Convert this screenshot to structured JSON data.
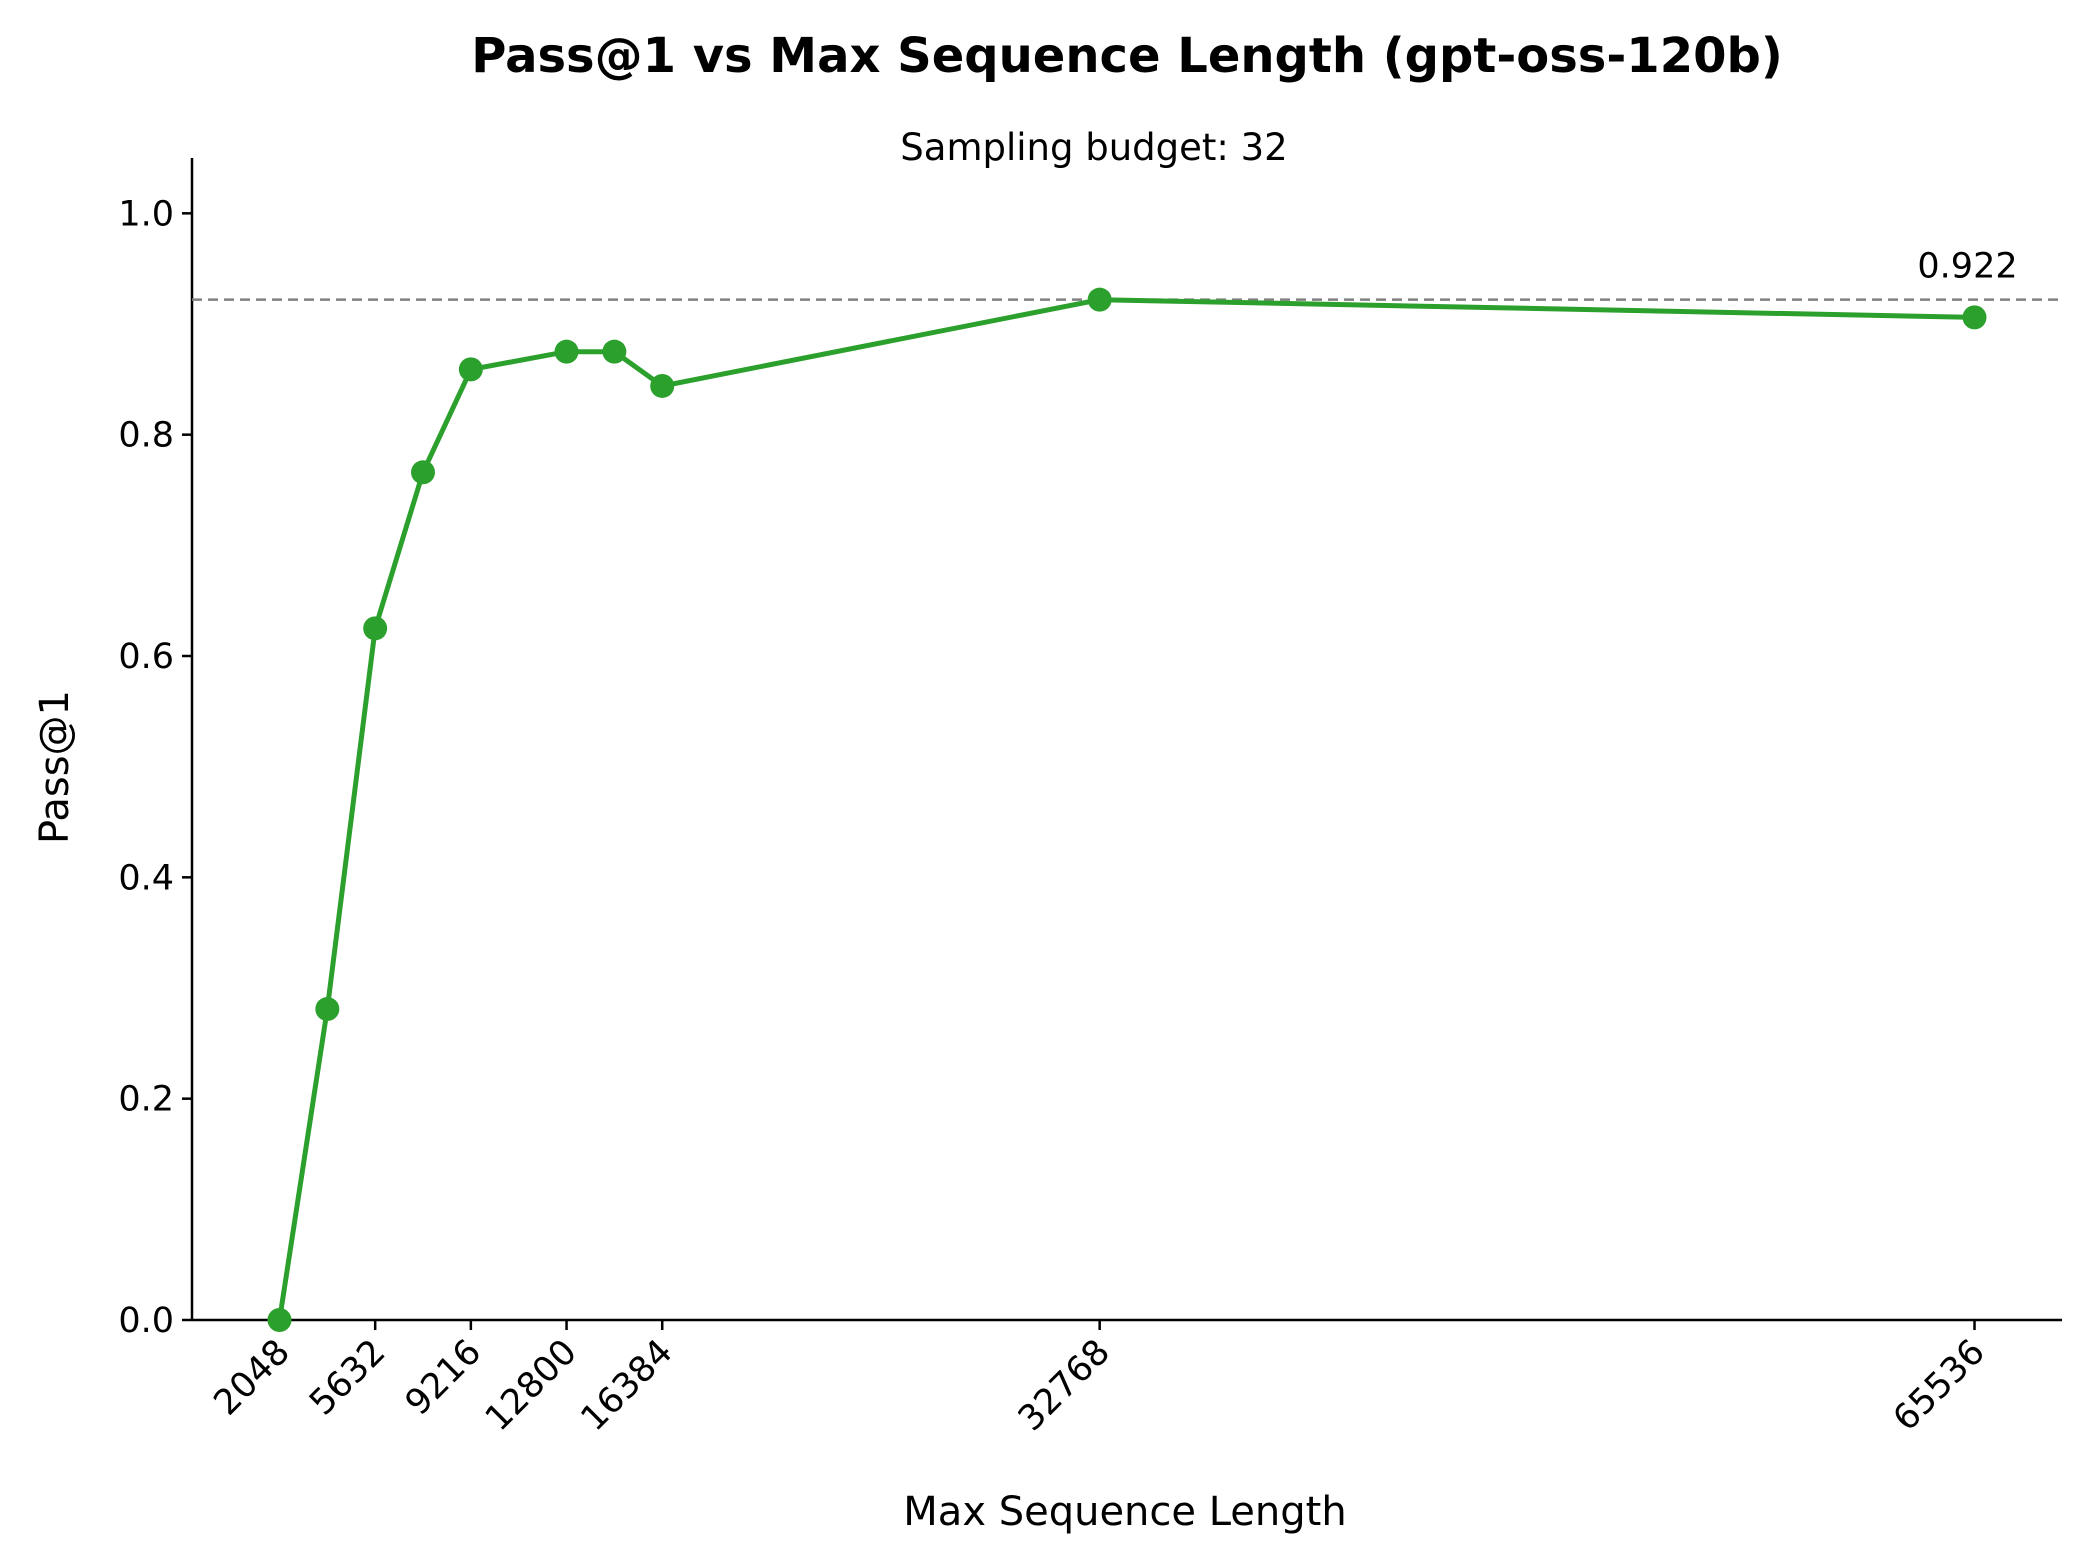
{
  "chart_data": {
    "type": "line",
    "title": "Pass@1 vs Max Sequence Length (gpt-oss-120b)",
    "subtitle": "Sampling budget: 32",
    "xlabel": "Max Sequence Length",
    "ylabel": "Pass@1",
    "xlim": [
      -1228.8,
      68812.8
    ],
    "ylim": [
      0.0,
      1.05
    ],
    "x_ticks": [
      2048,
      5632,
      9216,
      12800,
      16384,
      32768,
      65536
    ],
    "y_ticks": [
      0.0,
      0.2,
      0.4,
      0.6,
      0.8,
      1.0
    ],
    "y_tick_labels": [
      "0.0",
      "0.2",
      "0.4",
      "0.6",
      "0.8",
      "1.0"
    ],
    "x": [
      2048,
      3840,
      5632,
      7424,
      9216,
      12800,
      14592,
      16384,
      32768,
      65536
    ],
    "series": [
      {
        "values": [
          0.0,
          0.281,
          0.625,
          0.766,
          0.859,
          0.875,
          0.875,
          0.844,
          0.922,
          0.906
        ],
        "color": "#2ca02c"
      }
    ],
    "reference_line": {
      "y": 0.922,
      "style": "dashed",
      "color": "#808080",
      "label": "0.922"
    },
    "grid": false
  }
}
